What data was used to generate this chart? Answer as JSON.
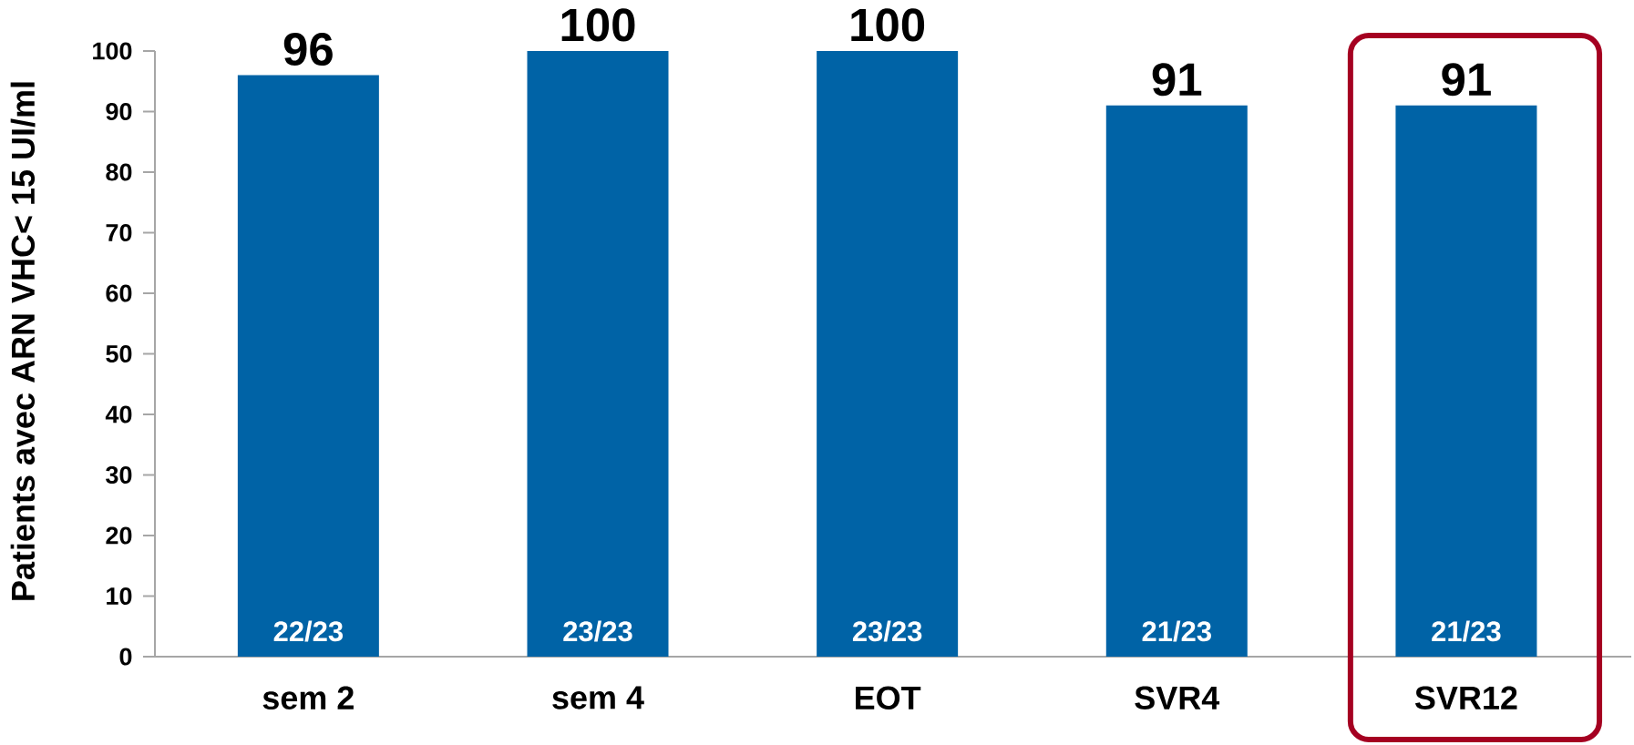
{
  "chart_data": {
    "type": "bar",
    "ylabel": "Patients avec ARN VHC< 15 UI/ml",
    "categories": [
      "sem 2",
      "sem 4",
      "EOT",
      "SVR4",
      "SVR12"
    ],
    "values": [
      96,
      100,
      100,
      91,
      91
    ],
    "color": "#0063a6",
    "ylim": [
      0,
      100
    ],
    "yticks": [
      0,
      10,
      20,
      30,
      40,
      50,
      60,
      70,
      80,
      90,
      100
    ],
    "data_labels": true,
    "annotations": [
      "22/23",
      "23/23",
      "23/23",
      "21/23",
      "21/23"
    ]
  }
}
